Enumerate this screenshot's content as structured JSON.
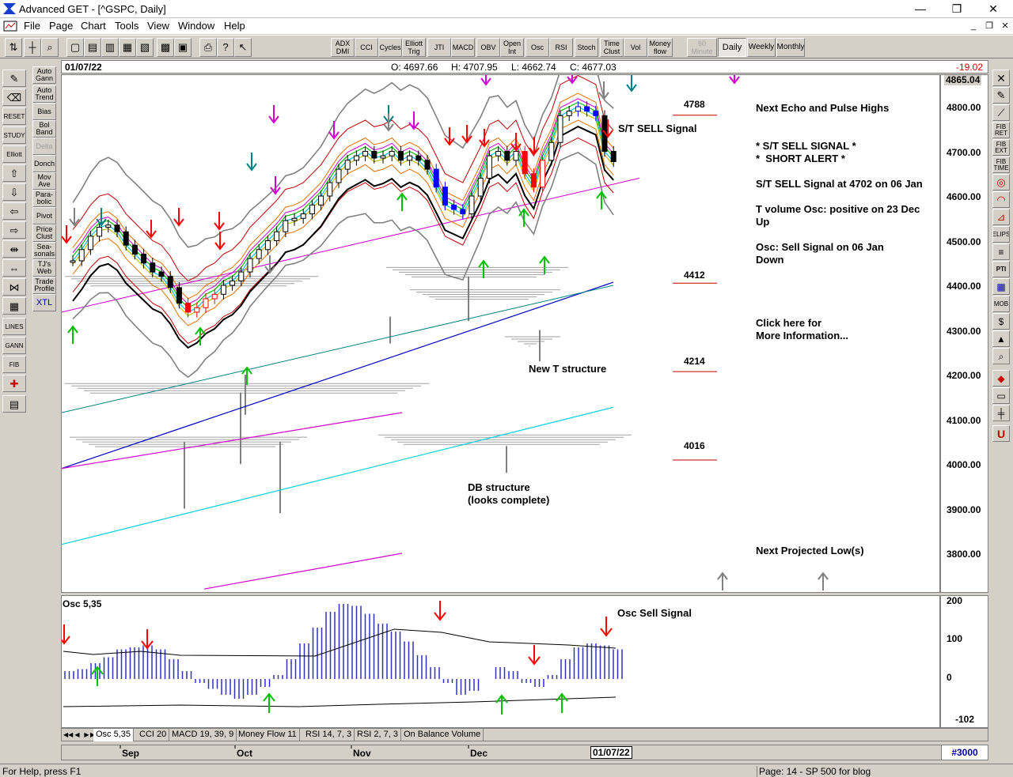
{
  "window": {
    "title": "Advanced GET - [^GSPC, Daily]",
    "min_label": "—",
    "max_label": "❐",
    "close_label": "✕"
  },
  "menu": {
    "items": [
      "File",
      "Page",
      "Chart",
      "Tools",
      "View",
      "Window",
      "Help"
    ]
  },
  "toolbar": {
    "indicators": [
      "ADX DMI",
      "CCI",
      "Cycles",
      "Elliott Trig",
      "JTI",
      "MACD",
      "OBV",
      "Open Int",
      "Osc",
      "RSI",
      "Stoch",
      "Time Clust",
      "Vol",
      "Money flow"
    ],
    "timeframes": [
      "60 Minute",
      "Daily",
      "Weekly",
      "Monthly"
    ],
    "active_timeframe": "Daily"
  },
  "sidebar": {
    "right_labels": [
      "Auto Gann",
      "Auto Trend",
      "Bias",
      "Bol Band",
      "Delta",
      "Donch",
      "Mov Ave",
      "Para-bolic",
      "Pivot",
      "Price Clust",
      "Sea-sonals",
      "TJ's Web",
      "Trade Profile",
      "XTL"
    ],
    "left_labels": [
      "RESET",
      "STUDY",
      "Elliott",
      "LINES",
      "GANN",
      "FIB"
    ]
  },
  "rightbar": {
    "labels": [
      "FIB RET",
      "FIB EXT",
      "FIB TIME",
      "ELIPS",
      "PTI",
      "MOB"
    ]
  },
  "quote": {
    "date": "01/07/22",
    "open": "O: 4697.66",
    "high": "H: 4707.95",
    "low": "L: 4662.74",
    "close": "C: 4677.03",
    "change": "-19.02"
  },
  "price_axis": {
    "top_label": "4865.04",
    "labels": [
      "4800.00",
      "4700.00",
      "4600.00",
      "4500.00",
      "4400.00",
      "4300.00",
      "4200.00",
      "4100.00",
      "4000.00",
      "3900.00",
      "3800.00"
    ]
  },
  "targets": [
    "4788",
    "4412",
    "4214",
    "4016"
  ],
  "annotations": {
    "st_sell": "S/T SELL Signal",
    "new_t": "New T structure",
    "db_structure": "DB structure\n(looks complete)",
    "osc_sell": "Osc Sell Signal"
  },
  "side_notes": {
    "echo": "Next Echo and Pulse Highs",
    "signal1": "* S/T SELL SIGNAL *",
    "signal2": "*  SHORT ALERT *",
    "st_sell_detail": "S/T SELL Signal at 4702 on 06 Jan",
    "tvol": "T volume Osc: positive on 23 Dec\nUp",
    "osc": "Osc: Sell Signal on 06 Jan\nDown",
    "click": "Click here for\nMore Information...",
    "projected": "Next Projected Low(s)"
  },
  "osc_panel": {
    "title": "Osc 5,35",
    "axis": [
      "200",
      "100",
      "0",
      "-102"
    ]
  },
  "tabs": [
    "Osc 5,35",
    "CCI 20",
    "MACD 19, 39, 9",
    "Money Flow 11",
    "RSI 14, 7, 3",
    "RSI 2, 7, 3",
    "On Balance Volume"
  ],
  "active_tab": "Osc 5,35",
  "date_axis": {
    "months": [
      "Sep",
      "Oct",
      "Nov",
      "Dec"
    ],
    "current": "01/07/22"
  },
  "bar_count": "#3000",
  "status": {
    "help": "For Help, press F1",
    "page": "Page: 14 - SP 500 for blog"
  },
  "chart_data": {
    "type": "line",
    "symbol": "^GSPC",
    "period": "Daily",
    "ylim": [
      3750,
      4865
    ],
    "close_series": [
      4455,
      4480,
      4510,
      4530,
      4535,
      4520,
      4490,
      4470,
      4450,
      4430,
      4420,
      4395,
      4360,
      4340,
      4350,
      4370,
      4380,
      4400,
      4410,
      4430,
      4460,
      4480,
      4500,
      4520,
      4545,
      4550,
      4560,
      4580,
      4600,
      4630,
      4660,
      4680,
      4690,
      4700,
      4685,
      4690,
      4700,
      4680,
      4690,
      4680,
      4660,
      4620,
      4580,
      4570,
      4560,
      4600,
      4640,
      4690,
      4700,
      4680,
      4700,
      4650,
      4620,
      4680,
      4720,
      4780,
      4790,
      4800,
      4790,
      4780,
      4700,
      4677
    ],
    "osc_values": [
      20,
      25,
      40,
      55,
      75,
      80,
      85,
      75,
      50,
      20,
      -10,
      -25,
      -40,
      -50,
      -40,
      -20,
      10,
      50,
      90,
      130,
      170,
      190,
      185,
      165,
      140,
      120,
      95,
      60,
      30,
      -10,
      -40,
      -30,
      0,
      30,
      20,
      -10,
      -20,
      10,
      50,
      80,
      90,
      85,
      75
    ],
    "osc_ylim": [
      -102,
      200
    ]
  }
}
